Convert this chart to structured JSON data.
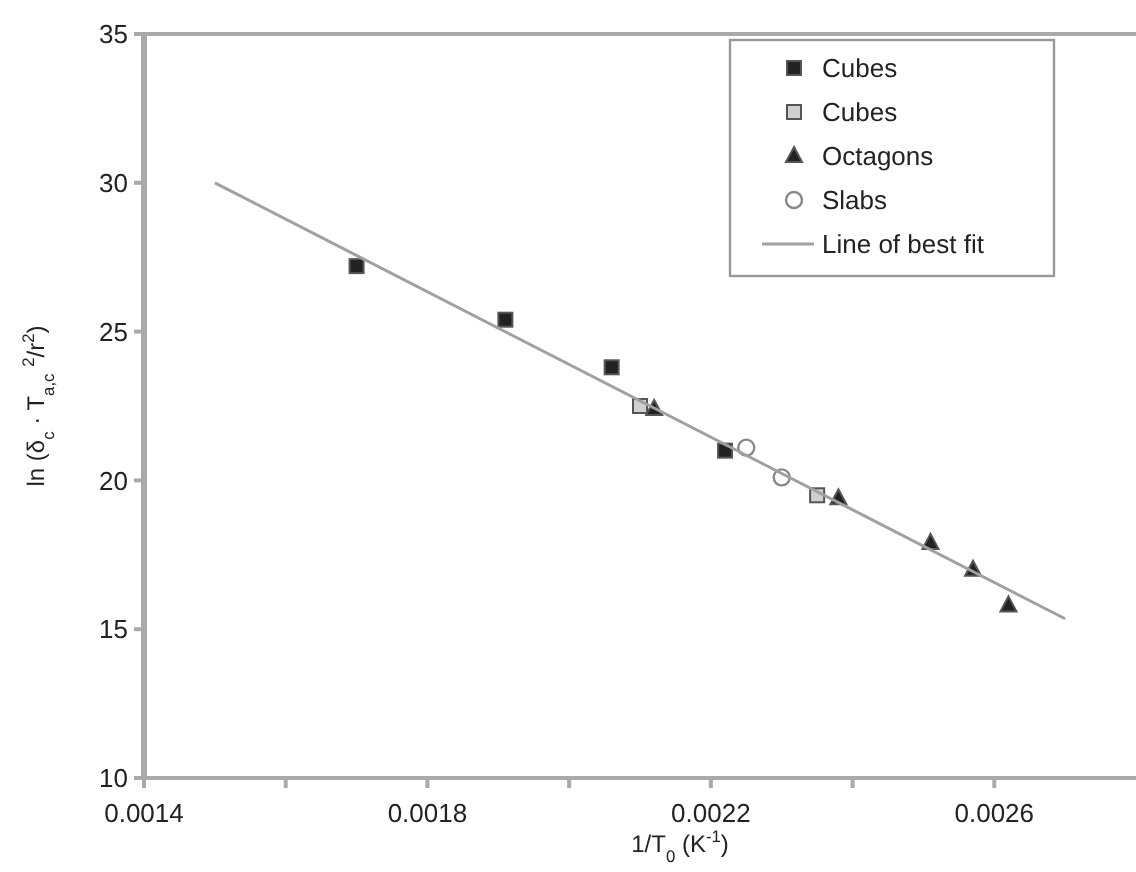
{
  "chart_data": {
    "type": "scatter",
    "xlabel": "1/T$_{0}$ (K$^{-1}$)",
    "ylabel": "ln (δ$_{c}$ · T$_{a,c}$ $^{2}$/r$^{2}$)",
    "xlim": [
      0.0014,
      0.0028
    ],
    "xticks": [
      0.0014,
      {
        "value": 0.0016,
        "label": null
      },
      0.0018,
      {
        "value": 0.002,
        "label": null
      },
      0.0022,
      {
        "value": 0.0024,
        "label": null
      },
      0.0026
    ],
    "ylim": [
      10,
      35
    ],
    "yticks": [
      10,
      15,
      20,
      25,
      30,
      35
    ],
    "legend": "top right",
    "grid": false,
    "series": [
      {
        "name": "Cubes",
        "marker": "square",
        "color": "#222222",
        "x": [
          0.0017,
          0.00191,
          0.00206,
          0.00222
        ],
        "values": [
          27.2,
          25.4,
          23.8,
          21.0
        ]
      },
      {
        "name": "Cubes",
        "marker": "square",
        "color": "#d0d0d0",
        "x": [
          0.0021,
          0.00235
        ],
        "values": [
          22.5,
          19.5
        ]
      },
      {
        "name": "Octagons",
        "marker": "triangle",
        "color": "#222222",
        "x": [
          0.00212,
          0.00238,
          0.00251,
          0.00257,
          0.00262
        ],
        "values": [
          22.4,
          19.4,
          17.9,
          17.0,
          15.8
        ]
      },
      {
        "name": "Slabs",
        "marker": "circle",
        "color": "#ffffff",
        "x": [
          0.00225,
          0.0023
        ],
        "values": [
          21.1,
          20.1
        ]
      },
      {
        "name": "Line of best fit",
        "type": "line",
        "marker": "none",
        "color": "#a0a0a0",
        "x": [
          0.0015,
          0.0027
        ],
        "values": [
          30.0,
          15.35
        ]
      }
    ]
  }
}
